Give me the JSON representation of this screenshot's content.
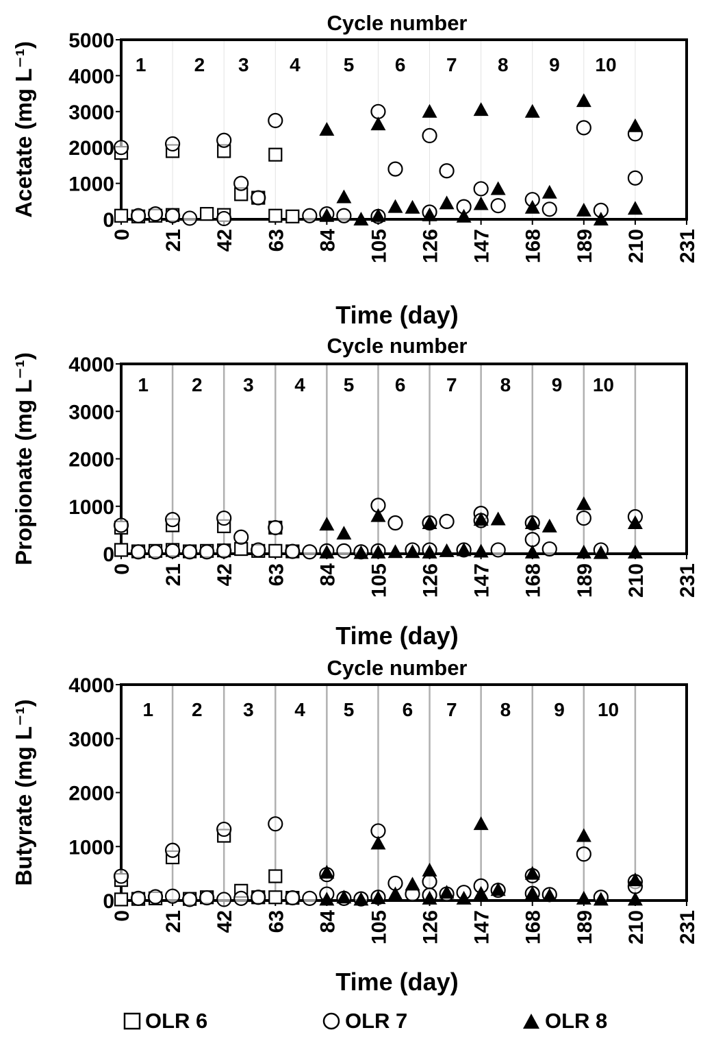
{
  "legend": {
    "items": [
      {
        "label": "OLR 6",
        "marker": "square"
      },
      {
        "label": "OLR 7",
        "marker": "circle"
      },
      {
        "label": "OLR 8",
        "marker": "triangle"
      }
    ]
  },
  "colors": {
    "ink": "#000000",
    "grid": "#b0b0b0",
    "background": "#ffffff"
  },
  "chart_data": [
    {
      "type": "scatter",
      "title": "Cycle number",
      "xlabel": "Time (day)",
      "ylabel": "Acetate (mg L⁻¹)",
      "xlim": [
        0,
        231
      ],
      "ylim": [
        0,
        5000
      ],
      "xticks": [
        0,
        21,
        42,
        63,
        84,
        105,
        126,
        147,
        168,
        189,
        210,
        231
      ],
      "yticks": [
        0,
        1000,
        2000,
        3000,
        4000,
        5000
      ],
      "cycle_lines": [],
      "cycle_labels": [
        {
          "text": "1",
          "x": 8
        },
        {
          "text": "2",
          "x": 32
        },
        {
          "text": "3",
          "x": 50
        },
        {
          "text": "4",
          "x": 71
        },
        {
          "text": "5",
          "x": 93
        },
        {
          "text": "6",
          "x": 114
        },
        {
          "text": "7",
          "x": 135
        },
        {
          "text": "8",
          "x": 156
        },
        {
          "text": "9",
          "x": 177
        },
        {
          "text": "10",
          "x": 198
        }
      ],
      "series": [
        {
          "name": "OLR 6",
          "marker": "square",
          "x": [
            0,
            0,
            7,
            14,
            21,
            21,
            35,
            42,
            42,
            49,
            56,
            63,
            63,
            70
          ],
          "y": [
            1850,
            100,
            80,
            100,
            120,
            1900,
            150,
            1900,
            120,
            700,
            600,
            1800,
            100,
            80
          ]
        },
        {
          "name": "OLR 7",
          "marker": "circle",
          "x": [
            0,
            7,
            14,
            21,
            21,
            28,
            42,
            42,
            49,
            56,
            63,
            77,
            84,
            91,
            105,
            105,
            112,
            126,
            126,
            133,
            140,
            147,
            154,
            168,
            175,
            189,
            196,
            210,
            210
          ],
          "y": [
            2000,
            100,
            150,
            100,
            2100,
            30,
            20,
            2200,
            1000,
            600,
            2750,
            100,
            150,
            100,
            3000,
            80,
            1400,
            2330,
            200,
            1350,
            350,
            850,
            380,
            550,
            280,
            2550,
            250,
            2380,
            1150
          ]
        },
        {
          "name": "OLR 8",
          "marker": "triangle",
          "x": [
            84,
            84,
            91,
            98,
            105,
            105,
            112,
            119,
            126,
            126,
            133,
            140,
            147,
            147,
            154,
            168,
            168,
            175,
            189,
            189,
            196,
            210,
            210
          ],
          "y": [
            2500,
            100,
            620,
            0,
            2650,
            100,
            350,
            330,
            3000,
            120,
            450,
            80,
            3050,
            430,
            850,
            3000,
            330,
            750,
            3300,
            250,
            0,
            2600,
            300
          ]
        }
      ]
    },
    {
      "type": "scatter",
      "title": "Cycle number",
      "xlabel": "Time (day)",
      "ylabel": "Propionate (mg L⁻¹)",
      "xlim": [
        0,
        231
      ],
      "ylim": [
        0,
        4000
      ],
      "xticks": [
        0,
        21,
        42,
        63,
        84,
        105,
        126,
        147,
        168,
        189,
        210,
        231
      ],
      "yticks": [
        0,
        1000,
        2000,
        3000,
        4000
      ],
      "cycle_lines": [
        21,
        42,
        63,
        84,
        105,
        126,
        147,
        168,
        189,
        210
      ],
      "cycle_labels": [
        {
          "text": "1",
          "x": 9
        },
        {
          "text": "2",
          "x": 31
        },
        {
          "text": "3",
          "x": 52
        },
        {
          "text": "4",
          "x": 73
        },
        {
          "text": "5",
          "x": 93
        },
        {
          "text": "6",
          "x": 114
        },
        {
          "text": "7",
          "x": 135
        },
        {
          "text": "8",
          "x": 157
        },
        {
          "text": "9",
          "x": 178
        },
        {
          "text": "10",
          "x": 197
        }
      ],
      "series": [
        {
          "name": "OLR 6",
          "marker": "square",
          "x": [
            0,
            0,
            7,
            14,
            21,
            21,
            28,
            35,
            42,
            42,
            49,
            56,
            63,
            63,
            70
          ],
          "y": [
            550,
            80,
            50,
            60,
            600,
            80,
            50,
            60,
            580,
            70,
            100,
            60,
            550,
            60,
            50
          ]
        },
        {
          "name": "OLR 7",
          "marker": "circle",
          "x": [
            0,
            7,
            14,
            21,
            21,
            28,
            35,
            42,
            42,
            49,
            56,
            63,
            70,
            77,
            84,
            91,
            98,
            105,
            105,
            112,
            119,
            126,
            126,
            133,
            140,
            147,
            147,
            154,
            168,
            168,
            175,
            189,
            196,
            210
          ],
          "y": [
            600,
            40,
            40,
            720,
            60,
            40,
            40,
            750,
            60,
            350,
            80,
            550,
            50,
            40,
            60,
            60,
            40,
            1020,
            60,
            650,
            80,
            650,
            80,
            680,
            80,
            850,
            700,
            80,
            650,
            300,
            100,
            750,
            80,
            780
          ]
        },
        {
          "name": "OLR 8",
          "marker": "triangle",
          "x": [
            84,
            84,
            91,
            98,
            105,
            105,
            112,
            119,
            126,
            126,
            133,
            140,
            147,
            147,
            154,
            168,
            168,
            175,
            189,
            189,
            196,
            210,
            210
          ],
          "y": [
            620,
            30,
            430,
            20,
            800,
            30,
            40,
            40,
            650,
            30,
            60,
            80,
            720,
            50,
            730,
            650,
            30,
            580,
            1050,
            30,
            20,
            650,
            30
          ]
        }
      ]
    },
    {
      "type": "scatter",
      "title": "Cycle number",
      "xlabel": "Time (day)",
      "ylabel": "Butyrate (mg L⁻¹)",
      "xlim": [
        0,
        231
      ],
      "ylim": [
        0,
        4000
      ],
      "xticks": [
        0,
        21,
        42,
        63,
        84,
        105,
        126,
        147,
        168,
        189,
        210,
        231
      ],
      "yticks": [
        0,
        1000,
        2000,
        3000,
        4000
      ],
      "cycle_lines": [
        21,
        42,
        63,
        84,
        105,
        126,
        147,
        168,
        189,
        210
      ],
      "cycle_labels": [
        {
          "text": "1",
          "x": 11
        },
        {
          "text": "2",
          "x": 31
        },
        {
          "text": "3",
          "x": 52
        },
        {
          "text": "4",
          "x": 73
        },
        {
          "text": "5",
          "x": 93
        },
        {
          "text": "6",
          "x": 117
        },
        {
          "text": "7",
          "x": 135
        },
        {
          "text": "8",
          "x": 157
        },
        {
          "text": "9",
          "x": 179
        },
        {
          "text": "10",
          "x": 199
        }
      ],
      "series": [
        {
          "name": "OLR 6",
          "marker": "square",
          "x": [
            0,
            0,
            7,
            14,
            21,
            28,
            35,
            42,
            49,
            56,
            63,
            63,
            70
          ],
          "y": [
            20,
            380,
            30,
            40,
            800,
            30,
            60,
            1200,
            180,
            60,
            450,
            60,
            50
          ]
        },
        {
          "name": "OLR 7",
          "marker": "circle",
          "x": [
            0,
            7,
            14,
            21,
            21,
            28,
            35,
            42,
            42,
            49,
            56,
            63,
            70,
            77,
            84,
            84,
            91,
            98,
            105,
            105,
            112,
            119,
            126,
            126,
            133,
            140,
            147,
            154,
            168,
            168,
            175,
            189,
            196,
            210,
            210
          ],
          "y": [
            450,
            40,
            70,
            930,
            80,
            20,
            50,
            1320,
            20,
            40,
            60,
            1420,
            50,
            40,
            480,
            120,
            40,
            30,
            1290,
            60,
            320,
            120,
            350,
            100,
            120,
            150,
            270,
            190,
            460,
            130,
            110,
            860,
            60,
            350,
            260
          ]
        },
        {
          "name": "OLR 8",
          "marker": "triangle",
          "x": [
            84,
            84,
            91,
            98,
            105,
            105,
            112,
            119,
            126,
            126,
            133,
            140,
            147,
            147,
            154,
            168,
            168,
            175,
            189,
            189,
            196,
            210,
            210
          ],
          "y": [
            520,
            20,
            60,
            20,
            1060,
            50,
            120,
            300,
            560,
            40,
            150,
            40,
            1420,
            130,
            200,
            500,
            130,
            90,
            1200,
            40,
            20,
            380,
            20
          ]
        }
      ]
    }
  ]
}
